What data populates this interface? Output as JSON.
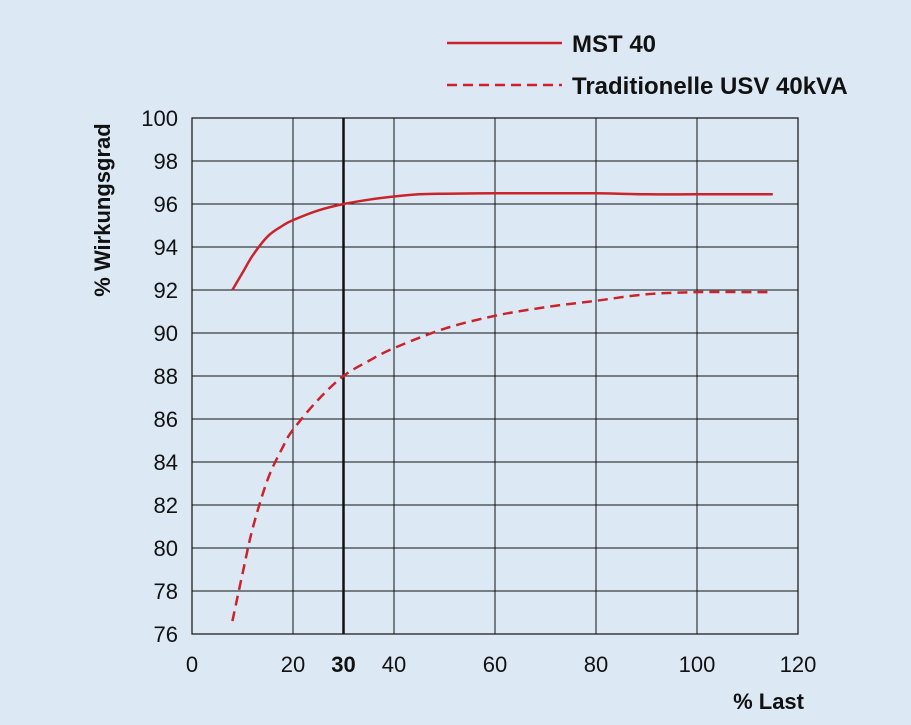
{
  "chart_data": {
    "type": "line",
    "title": "",
    "xlabel": "% Last",
    "ylabel": "% Wirkungsgrad",
    "xlim": [
      0,
      120
    ],
    "ylim": [
      76,
      100
    ],
    "x_ticks": [
      "0",
      "20",
      "30",
      "40",
      "60",
      "80",
      "100",
      "120"
    ],
    "highlight_tick": "30",
    "highlight_x": 30,
    "y_ticks": [
      "100",
      "98",
      "96",
      "94",
      "92",
      "90",
      "88",
      "86",
      "84",
      "82",
      "80",
      "78",
      "76"
    ],
    "grid": true,
    "legend_position": "top-right",
    "series": [
      {
        "name": "MST 40",
        "style": "solid",
        "color": "#cc2229",
        "x": [
          8,
          10,
          12,
          15,
          18,
          20,
          25,
          30,
          35,
          40,
          45,
          50,
          60,
          70,
          80,
          90,
          100,
          110,
          115
        ],
        "values": [
          92.0,
          92.8,
          93.6,
          94.5,
          95.0,
          95.25,
          95.7,
          96.0,
          96.2,
          96.35,
          96.45,
          96.48,
          96.5,
          96.5,
          96.5,
          96.45,
          96.45,
          96.45,
          96.45
        ]
      },
      {
        "name": "Traditionelle USV 40kVA",
        "style": "dashed",
        "color": "#cc2229",
        "x": [
          8,
          10,
          12,
          15,
          18,
          20,
          25,
          30,
          35,
          40,
          50,
          60,
          70,
          80,
          90,
          100,
          110,
          115
        ],
        "values": [
          76.6,
          78.8,
          80.9,
          83.2,
          84.7,
          85.5,
          86.9,
          88.0,
          88.7,
          89.3,
          90.2,
          90.8,
          91.2,
          91.5,
          91.8,
          91.9,
          91.9,
          91.9
        ]
      }
    ]
  }
}
